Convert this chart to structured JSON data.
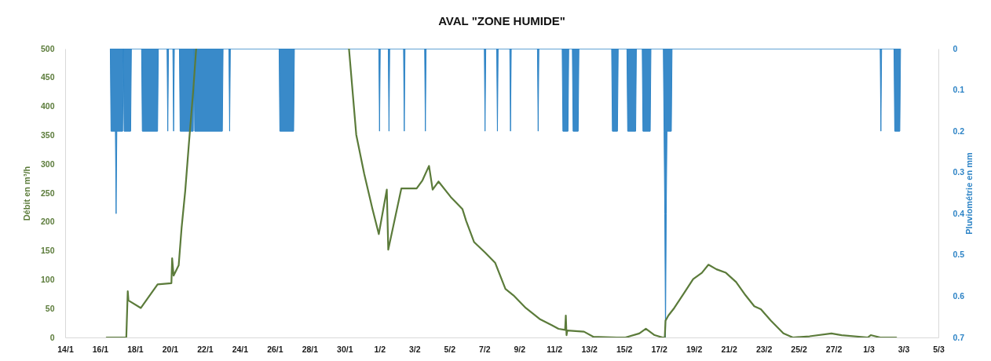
{
  "chart_data": {
    "type": "line",
    "title": "AVAL \"ZONE HUMIDE\"",
    "ylabel": "Débit en m³/h",
    "y2label": "Pluviométrie en mm",
    "xlim": [
      "--01-14",
      "--03-05"
    ],
    "xticks": [
      {
        "value": "--01-14",
        "label": "14/1"
      },
      {
        "value": "--01-16",
        "label": "16/1"
      },
      {
        "value": "--01-18",
        "label": "18/1"
      },
      {
        "value": "--01-20",
        "label": "20/1"
      },
      {
        "value": "--01-22",
        "label": "22/1"
      },
      {
        "value": "--01-24",
        "label": "24/1"
      },
      {
        "value": "--01-26",
        "label": "26/1"
      },
      {
        "value": "--01-28",
        "label": "28/1"
      },
      {
        "value": "--01-30",
        "label": "30/1"
      },
      {
        "value": "--02-01",
        "label": "1/2"
      },
      {
        "value": "--02-03",
        "label": "3/2"
      },
      {
        "value": "--02-05",
        "label": "5/2"
      },
      {
        "value": "--02-07",
        "label": "7/2"
      },
      {
        "value": "--02-09",
        "label": "9/2"
      },
      {
        "value": "--02-11",
        "label": "11/2"
      },
      {
        "value": "--02-13",
        "label": "13/2"
      },
      {
        "value": "--02-15",
        "label": "15/2"
      },
      {
        "value": "--02-17",
        "label": "17/2"
      },
      {
        "value": "--02-19",
        "label": "19/2"
      },
      {
        "value": "--02-21",
        "label": "21/2"
      },
      {
        "value": "--02-23",
        "label": "23/2"
      },
      {
        "value": "--02-25",
        "label": "25/2"
      },
      {
        "value": "--02-27",
        "label": "27/2"
      },
      {
        "value": "--03-01",
        "label": "1/3"
      },
      {
        "value": "--03-03",
        "label": "3/3"
      },
      {
        "value": "--03-05",
        "label": "5/3"
      }
    ],
    "ylim": [
      0,
      500
    ],
    "yticks": [
      0,
      50,
      100,
      150,
      200,
      250,
      300,
      350,
      400,
      450,
      500
    ],
    "y2lim": [
      0.7,
      0
    ],
    "y2ticks": [
      0,
      0.1,
      0.2,
      0.3,
      0.4,
      0.5,
      0.6,
      0.7
    ],
    "series": [
      {
        "type": "area",
        "axis": "y2",
        "color": "#2e84c6",
        "x": [
          "--01-16T14:00",
          "--01-16T15:00",
          "--01-16T21:00",
          "--01-16T22:00",
          "--01-16T23:00",
          "--01-17T07:00",
          "--01-17T08:00",
          "--01-17T09:00",
          "--01-17T18:00",
          "--01-17T19:00",
          "--01-18T09:00",
          "--01-18T10:00",
          "--01-19T07:00",
          "--01-19T08:00",
          "--01-19T20:00",
          "--01-19T21:00",
          "--01-19T22:00",
          "--01-20T04:00",
          "--01-20T05:00",
          "--01-20T06:00",
          "--01-20T13:00",
          "--01-20T14:00",
          "--01-21T08:00",
          "--01-21T09:00",
          "--01-21T10:00",
          "--01-23T00:00",
          "--01-23T01:00",
          "--01-23T09:00",
          "--01-23T10:00",
          "--01-23T11:00",
          "--01-26T06:00",
          "--01-26T07:00",
          "--01-27T02:00",
          "--01-27T03:00",
          "--01-31T23:00",
          "--02-01T00:00",
          "--02-01T01:00",
          "--02-01T12:00",
          "--02-01T13:00",
          "--02-01T14:00",
          "--02-02T09:00",
          "--02-02T10:00",
          "--02-02T11:00",
          "--02-03T14:00",
          "--02-03T15:00",
          "--02-03T16:00",
          "--02-07T00:00",
          "--02-07T01:00",
          "--02-07T02:00",
          "--02-07T17:00",
          "--02-07T18:00",
          "--02-07T19:00",
          "--02-08T11:00",
          "--02-08T12:00",
          "--02-08T13:00",
          "--02-10T01:00",
          "--02-10T02:00",
          "--02-10T03:00",
          "--02-11T11:00",
          "--02-11T12:00",
          "--02-11T19:00",
          "--02-11T20:00",
          "--02-12T01:00",
          "--02-12T02:00",
          "--02-12T09:00",
          "--02-12T10:00",
          "--02-14T07:00",
          "--02-14T08:00",
          "--02-14T15:00",
          "--02-14T16:00",
          "--02-15T04:00",
          "--02-15T05:00",
          "--02-15T16:00",
          "--02-15T17:00",
          "--02-16T01:00",
          "--02-16T02:00",
          "--02-16T12:00",
          "--02-16T13:00",
          "--02-17T06:00",
          "--02-17T07:00",
          "--02-17T08:00",
          "--02-17T09:00",
          "--02-17T10:00",
          "--02-17T11:00",
          "--02-17T17:00",
          "--02-17T18:00",
          "--03-01T16:00",
          "--03-01T17:00",
          "--03-01T18:00",
          "--03-02T11:00",
          "--03-02T12:00",
          "--03-02T19:00",
          "--03-02T20:00"
        ],
        "values": [
          0,
          0.2,
          0.2,
          0.4,
          0.2,
          0.2,
          0,
          0.2,
          0.2,
          0,
          0,
          0.2,
          0.2,
          0,
          0,
          0.2,
          0,
          0,
          0.2,
          0,
          0,
          0.2,
          0.2,
          0,
          0.2,
          0.2,
          0,
          0,
          0.2,
          0,
          0,
          0.2,
          0.2,
          0,
          0,
          0.2,
          0,
          0,
          0.2,
          0,
          0,
          0.2,
          0,
          0,
          0.2,
          0,
          0,
          0.2,
          0,
          0,
          0.2,
          0,
          0,
          0.2,
          0,
          0,
          0.2,
          0,
          0,
          0.2,
          0.2,
          0,
          0,
          0.2,
          0.2,
          0,
          0,
          0.2,
          0.2,
          0,
          0,
          0.2,
          0.2,
          0,
          0,
          0.2,
          0.2,
          0,
          0,
          0.2,
          0.4,
          0.7,
          0.4,
          0.2,
          0.2,
          0,
          0,
          0.2,
          0,
          0,
          0.2,
          0.2,
          0
        ]
      },
      {
        "color": "#5b7b3a",
        "x": [
          "--01-16T09:00",
          "--01-17T12:00",
          "--01-17T14:00",
          "--01-17T15:00",
          "--01-18T08:00",
          "--01-18T17:00",
          "--01-19T07:00",
          "--01-20T02:00",
          "--01-20T03:00",
          "--01-20T05:00",
          "--01-20T12:00",
          "--01-20T16:00",
          "--01-20T21:00",
          "--01-21T02:00",
          "--01-21T08:00",
          "--01-21T12:00",
          "--01-25T00:00",
          "--01-30T06:00",
          "--01-30T16:00",
          "--01-31T03:00",
          "--01-31T14:00",
          "--01-31T23:00",
          "--02-01T10:00",
          "--02-01T12:00",
          "--02-02T06:00",
          "--02-03T03:00",
          "--02-03T11:00",
          "--02-03T20:00",
          "--02-04T01:00",
          "--02-04T09:00",
          "--02-05T02:00",
          "--02-05T18:00",
          "--02-05T23:00",
          "--02-06T10:00",
          "--02-07T01:00",
          "--02-07T15:00",
          "--02-08T05:00",
          "--02-08T16:00",
          "--02-09T09:00",
          "--02-10T04:00",
          "--02-10T21:00",
          "--02-11T06:00",
          "--02-11T15:00",
          "--02-11T16:00",
          "--02-11T17:00",
          "--02-11T18:00",
          "--02-12T17:00",
          "--02-13T06:00",
          "--02-14T14:00",
          "--02-15T02:00",
          "--02-15T21:00",
          "--02-16T06:00",
          "--02-16T18:00",
          "--02-17T05:00",
          "--02-17T08:00",
          "--02-17T09:00",
          "--02-17T13:00",
          "--02-17T21:00",
          "--02-18T10:00",
          "--02-18T23:00",
          "--02-19T11:00",
          "--02-19T20:00",
          "--02-20T07:00",
          "--02-20T20:00",
          "--02-21T10:00",
          "--02-21T23:00",
          "--02-22T11:00",
          "--02-22T20:00",
          "--02-23T10:00",
          "--02-24T03:00",
          "--02-24T16:00",
          "--02-25T15:00",
          "--02-26T21:00",
          "--02-27T11:00",
          "--02-28T23:00",
          "--03-01T03:00",
          "--03-01T16:00",
          "--03-02T14:00"
        ],
        "values": [
          0,
          0,
          80,
          64,
          51,
          67,
          92,
          94,
          137,
          107,
          125,
          190,
          254,
          335,
          428,
          500,
          null,
          500,
          351,
          283,
          224,
          179,
          256,
          152,
          258,
          258,
          272,
          297,
          256,
          270,
          243,
          222,
          202,
          165,
          147,
          129,
          84,
          73,
          51,
          32,
          21,
          15,
          13,
          38,
          4,
          12,
          10,
          1,
          0,
          0,
          7,
          15,
          4,
          0,
          0,
          29,
          38,
          51,
          76,
          101,
          112,
          126,
          118,
          112,
          96,
          73,
          54,
          49,
          29,
          7,
          0,
          2,
          7,
          4,
          0,
          4,
          0,
          0
        ]
      }
    ]
  }
}
